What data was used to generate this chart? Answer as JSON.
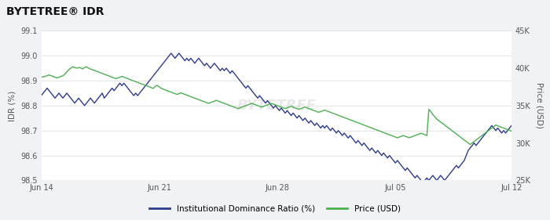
{
  "title": "BYTETREE® IDR",
  "ylabel_left": "IDR (%)",
  "ylabel_right": "Price (USD)",
  "ylim_left": [
    98.5,
    99.1
  ],
  "ylim_right": [
    25000,
    45000
  ],
  "yticks_left": [
    98.5,
    98.6,
    98.7,
    98.8,
    98.9,
    99.0,
    99.1
  ],
  "yticks_right": [
    25000,
    30000,
    35000,
    40000,
    45000
  ],
  "ytick_labels_right": [
    "25K",
    "30K",
    "35K",
    "40K",
    "45K"
  ],
  "xtick_labels": [
    "Jun 14",
    "Jun 21",
    "Jun 28",
    "Jul 05",
    "Jul 12"
  ],
  "background_color": "#f0f2f5",
  "plot_bg_color": "#ffffff",
  "grid_color": "#e0e0e0",
  "idr_color": "#2e3b8e",
  "price_color": "#4caf50",
  "legend_idr": "Institutional Dominance Ratio (%)",
  "legend_price": "Price (USD)",
  "idr_data": [
    98.84,
    98.85,
    98.86,
    98.87,
    98.86,
    98.85,
    98.84,
    98.83,
    98.84,
    98.85,
    98.84,
    98.83,
    98.84,
    98.85,
    98.84,
    98.83,
    98.82,
    98.81,
    98.82,
    98.83,
    98.82,
    98.81,
    98.8,
    98.81,
    98.82,
    98.83,
    98.82,
    98.81,
    98.82,
    98.83,
    98.84,
    98.85,
    98.83,
    98.84,
    98.85,
    98.86,
    98.87,
    98.86,
    98.87,
    98.88,
    98.89,
    98.88,
    98.89,
    98.88,
    98.87,
    98.86,
    98.85,
    98.84,
    98.85,
    98.84,
    98.85,
    98.86,
    98.87,
    98.88,
    98.89,
    98.9,
    98.91,
    98.92,
    98.93,
    98.94,
    98.95,
    98.96,
    98.97,
    98.98,
    98.99,
    99.0,
    99.01,
    99.0,
    98.99,
    99.0,
    99.01,
    99.0,
    98.99,
    98.98,
    98.99,
    98.98,
    98.99,
    98.98,
    98.97,
    98.98,
    98.99,
    98.98,
    98.97,
    98.96,
    98.97,
    98.96,
    98.95,
    98.96,
    98.97,
    98.96,
    98.95,
    98.94,
    98.95,
    98.94,
    98.95,
    98.94,
    98.93,
    98.94,
    98.93,
    98.92,
    98.91,
    98.9,
    98.89,
    98.88,
    98.87,
    98.88,
    98.87,
    98.86,
    98.85,
    98.84,
    98.83,
    98.84,
    98.83,
    98.82,
    98.81,
    98.82,
    98.81,
    98.8,
    98.79,
    98.8,
    98.79,
    98.78,
    98.79,
    98.78,
    98.77,
    98.78,
    98.77,
    98.76,
    98.77,
    98.76,
    98.75,
    98.76,
    98.75,
    98.74,
    98.75,
    98.74,
    98.73,
    98.74,
    98.73,
    98.72,
    98.73,
    98.72,
    98.71,
    98.72,
    98.71,
    98.72,
    98.71,
    98.7,
    98.71,
    98.7,
    98.69,
    98.7,
    98.69,
    98.68,
    98.69,
    98.68,
    98.67,
    98.68,
    98.67,
    98.66,
    98.65,
    98.66,
    98.65,
    98.64,
    98.65,
    98.64,
    98.63,
    98.62,
    98.63,
    98.62,
    98.61,
    98.62,
    98.61,
    98.6,
    98.61,
    98.6,
    98.59,
    98.6,
    98.59,
    98.58,
    98.57,
    98.58,
    98.57,
    98.56,
    98.55,
    98.54,
    98.55,
    98.54,
    98.53,
    98.52,
    98.51,
    98.52,
    98.51,
    98.5,
    98.49,
    98.5,
    98.51,
    98.5,
    98.51,
    98.52,
    98.51,
    98.5,
    98.51,
    98.52,
    98.51,
    98.5,
    98.51,
    98.52,
    98.53,
    98.54,
    98.55,
    98.56,
    98.55,
    98.56,
    98.57,
    98.58,
    98.6,
    98.62,
    98.63,
    98.64,
    98.65,
    98.64,
    98.65,
    98.66,
    98.67,
    98.68,
    98.69,
    98.7,
    98.71,
    98.72,
    98.71,
    98.7,
    98.71,
    98.7,
    98.69,
    98.7,
    98.69,
    98.7,
    98.71,
    98.72
  ],
  "price_data": [
    38800,
    38850,
    38900,
    39000,
    39100,
    39000,
    38900,
    38800,
    38700,
    38800,
    38900,
    39000,
    39200,
    39500,
    39800,
    40000,
    40200,
    40100,
    40000,
    40100,
    40050,
    39900,
    40100,
    40200,
    40000,
    39900,
    39800,
    39700,
    39600,
    39500,
    39400,
    39300,
    39200,
    39100,
    39000,
    38900,
    38800,
    38700,
    38600,
    38700,
    38800,
    38900,
    38800,
    38700,
    38600,
    38500,
    38400,
    38300,
    38200,
    38100,
    38000,
    37900,
    37800,
    37700,
    37600,
    37500,
    37400,
    37300,
    37600,
    37700,
    37500,
    37300,
    37200,
    37100,
    37000,
    36900,
    36800,
    36700,
    36600,
    36500,
    36600,
    36700,
    36600,
    36500,
    36400,
    36300,
    36200,
    36100,
    36000,
    35900,
    35800,
    35700,
    35600,
    35500,
    35400,
    35300,
    35400,
    35500,
    35600,
    35700,
    35600,
    35500,
    35400,
    35300,
    35200,
    35100,
    35000,
    34900,
    34800,
    34700,
    34600,
    34700,
    34800,
    34900,
    35000,
    35100,
    35200,
    35300,
    35200,
    35100,
    35000,
    34900,
    34800,
    34900,
    35000,
    35100,
    35200,
    35300,
    35200,
    35100,
    35000,
    34900,
    34800,
    34700,
    34600,
    34700,
    34800,
    34900,
    34800,
    34700,
    34600,
    34500,
    34600,
    34700,
    34800,
    34700,
    34600,
    34500,
    34400,
    34300,
    34200,
    34100,
    34200,
    34300,
    34400,
    34300,
    34200,
    34100,
    34000,
    33900,
    33800,
    33700,
    33600,
    33500,
    33400,
    33300,
    33200,
    33100,
    33000,
    32900,
    32800,
    32700,
    32600,
    32500,
    32400,
    32300,
    32200,
    32100,
    32000,
    31900,
    31800,
    31700,
    31600,
    31500,
    31400,
    31300,
    31200,
    31100,
    31000,
    30900,
    30800,
    30700,
    30800,
    30900,
    31000,
    30900,
    30800,
    30700,
    30800,
    30900,
    31000,
    31100,
    31200,
    31300,
    31200,
    31100,
    31000,
    34500,
    34200,
    33800,
    33500,
    33200,
    33000,
    32800,
    32600,
    32400,
    32200,
    32000,
    31800,
    31600,
    31400,
    31200,
    31000,
    30800,
    30600,
    30400,
    30200,
    30000,
    29800,
    30000,
    30200,
    30400,
    30600,
    30800,
    31000,
    31200,
    31400,
    31600,
    31800,
    32000,
    32200,
    32400,
    32300,
    32200,
    32100,
    32000,
    31900,
    31800,
    31700,
    31600
  ]
}
